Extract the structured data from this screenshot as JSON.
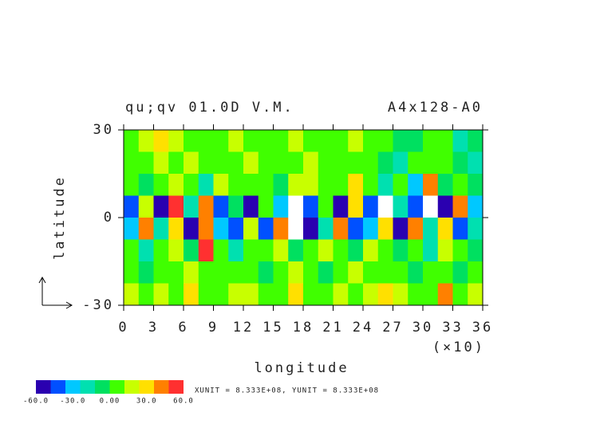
{
  "chart_data": {
    "type": "contour",
    "title": "qu;qv 01.0D V.M.",
    "subtitle": "A4x128-A0",
    "xlabel": "longitude",
    "ylabel": "latitude",
    "x_multiplier": "(×10)",
    "xlim": [
      0,
      36
    ],
    "xticks": [
      0,
      3,
      6,
      9,
      12,
      15,
      18,
      21,
      24,
      27,
      30,
      33,
      36
    ],
    "ylim": [
      -30,
      30
    ],
    "yticks": [
      30,
      0,
      -30
    ],
    "levels": [
      -60,
      -48,
      -36,
      -24,
      -12,
      0,
      12,
      24,
      36,
      48,
      60
    ],
    "colors": [
      "#2a00b0",
      "#0050ff",
      "#00c8ff",
      "#00e0b0",
      "#00e060",
      "#40ff00",
      "#c8ff00",
      "#ffe000",
      "#ff8000",
      "#ff3030"
    ],
    "above_color": "#ffffff",
    "colorbar_ticks": [
      {
        "value": -60,
        "label": "-60.0"
      },
      {
        "value": -30,
        "label": "-30.0"
      },
      {
        "value": 0,
        "label": "0.00"
      },
      {
        "value": 30,
        "label": "30.0"
      },
      {
        "value": 60,
        "label": "60.0"
      }
    ],
    "units_note": "XUNIT = 8.333E+08, YUNIT = 8.333E+08",
    "z": [
      [
        10,
        20,
        30,
        15,
        10,
        5,
        10,
        15,
        10,
        5,
        10,
        20,
        10,
        5,
        10,
        15,
        10,
        0,
        -10,
        -5,
        5,
        10,
        -15,
        -10
      ],
      [
        5,
        10,
        20,
        10,
        15,
        10,
        5,
        10,
        15,
        10,
        5,
        10,
        15,
        10,
        5,
        10,
        5,
        -5,
        -15,
        0,
        10,
        5,
        -10,
        -15
      ],
      [
        10,
        -10,
        5,
        20,
        10,
        -15,
        20,
        10,
        5,
        10,
        -10,
        15,
        20,
        5,
        10,
        30,
        10,
        -20,
        10,
        -30,
        40,
        -10,
        0,
        -5
      ],
      [
        -40,
        20,
        -50,
        50,
        -20,
        40,
        -40,
        -10,
        -50,
        10,
        -30,
        70,
        -40,
        10,
        -50,
        30,
        -40,
        60,
        -20,
        -40,
        60,
        -50,
        40,
        -30
      ],
      [
        -30,
        40,
        -20,
        30,
        -50,
        45,
        -30,
        -40,
        20,
        -40,
        40,
        70,
        -50,
        -20,
        40,
        -40,
        -30,
        30,
        -50,
        40,
        -20,
        30,
        -40,
        -20
      ],
      [
        10,
        -20,
        10,
        20,
        -10,
        50,
        10,
        -20,
        10,
        5,
        20,
        -10,
        10,
        15,
        5,
        -10,
        20,
        10,
        -10,
        10,
        -15,
        20,
        5,
        -10
      ],
      [
        5,
        -10,
        0,
        10,
        15,
        10,
        5,
        10,
        0,
        -5,
        10,
        20,
        5,
        -5,
        10,
        15,
        0,
        5,
        10,
        -5,
        0,
        10,
        -10,
        5
      ],
      [
        20,
        10,
        15,
        10,
        30,
        5,
        10,
        15,
        20,
        10,
        5,
        30,
        10,
        5,
        20,
        10,
        15,
        30,
        20,
        10,
        5,
        40,
        10,
        15
      ]
    ]
  }
}
